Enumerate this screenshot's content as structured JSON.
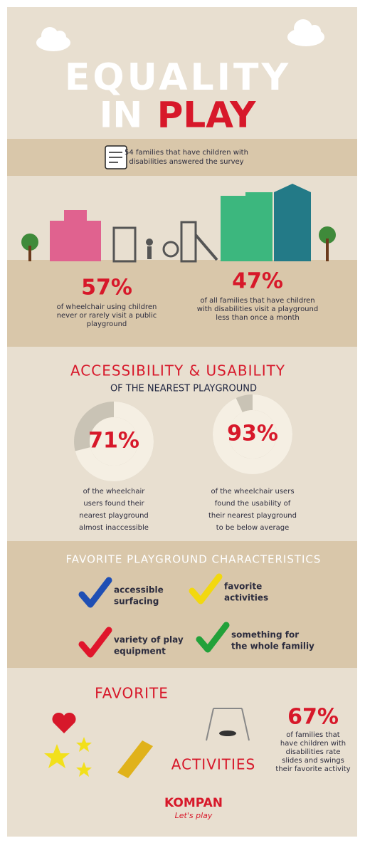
{
  "header": {
    "title_line1": "EQUALITY",
    "title_in": "IN",
    "title_play": "PLAY"
  },
  "survey": {
    "lines": [
      "54 families that have children with",
      "disabilities answered the survey"
    ]
  },
  "stats": [
    {
      "label": "57%",
      "lines": [
        "of wheelchair using children",
        "never or rarely visit a public",
        "playground"
      ]
    },
    {
      "label": "47%",
      "lines": [
        "of all families that have children",
        "with disabilities visit a playground",
        "less than once a month"
      ]
    }
  ],
  "accessibility": {
    "title": "ACCESSIBILITY  &  USABILITY",
    "subtitle": "OF THE NEAREST PLAYGROUND",
    "donuts": [
      {
        "value": 71,
        "label": "71%",
        "lines": [
          "of the wheelchair",
          "users found their",
          "nearest playground",
          "almost inaccessible"
        ]
      },
      {
        "value": 93,
        "label": "93%",
        "lines": [
          "of the wheelchair users",
          "found the usability of",
          "their nearest playground",
          "to be below average"
        ]
      }
    ]
  },
  "characteristics": {
    "title": "FAVORITE PLAYGROUND CHARACTERISTICS",
    "items": [
      {
        "lines": [
          "accessible",
          "surfacing"
        ],
        "color": "#1f4fb4"
      },
      {
        "lines": [
          "favorite",
          "activities"
        ],
        "color": "#f2d80f"
      },
      {
        "lines": [
          "variety of play",
          "equipment"
        ],
        "color": "#e0152b"
      },
      {
        "lines": [
          "something for",
          "the whole familiy"
        ],
        "color": "#22a13a"
      }
    ]
  },
  "activities": {
    "word1": "FAVORITE",
    "word2": "ACTIVITIES",
    "label": "67%",
    "lines": [
      "of families that",
      "have children with",
      "disabilities rate",
      "slides and swings",
      "their favorite activity"
    ]
  },
  "footer": {
    "brand": "KOMPAN",
    "tagline": "Let's play"
  }
}
